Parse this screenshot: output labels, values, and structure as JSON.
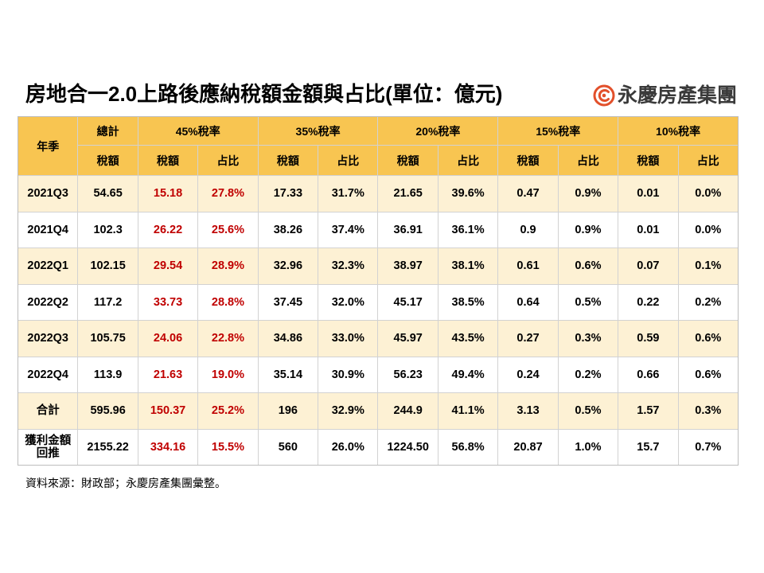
{
  "logo": {
    "text": "永慶房產集團",
    "icon": "brand-logo-icon",
    "color": "#E2502B"
  },
  "colors": {
    "header_bg": "#F8C551",
    "row_alt_bg": "#FDF1D4",
    "grid_line": "#D2D2D2"
  },
  "chart_data": {
    "type": "table",
    "title": "房地合一2.0上路後應納稅額金額與占比(單位：億元)",
    "source": "資料來源：財政部；永慶房產集團彙整。",
    "row_header": "年季",
    "groups": [
      {
        "label": "總計",
        "columns": [
          "稅額"
        ]
      },
      {
        "label": "45%稅率",
        "columns": [
          "稅額",
          "占比"
        ],
        "value_color": "#C00000"
      },
      {
        "label": "35%稅率",
        "columns": [
          "稅額",
          "占比"
        ]
      },
      {
        "label": "20%稅率",
        "columns": [
          "稅額",
          "占比"
        ]
      },
      {
        "label": "15%稅率",
        "columns": [
          "稅額",
          "占比"
        ]
      },
      {
        "label": "10%稅率",
        "columns": [
          "稅額",
          "占比"
        ]
      }
    ],
    "rows": [
      {
        "label": "2021Q3",
        "values": [
          "54.65",
          "15.18",
          "27.8%",
          "17.33",
          "31.7%",
          "21.65",
          "39.6%",
          "0.47",
          "0.9%",
          "0.01",
          "0.0%"
        ]
      },
      {
        "label": "2021Q4",
        "values": [
          "102.3",
          "26.22",
          "25.6%",
          "38.26",
          "37.4%",
          "36.91",
          "36.1%",
          "0.9",
          "0.9%",
          "0.01",
          "0.0%"
        ]
      },
      {
        "label": "2022Q1",
        "values": [
          "102.15",
          "29.54",
          "28.9%",
          "32.96",
          "32.3%",
          "38.97",
          "38.1%",
          "0.61",
          "0.6%",
          "0.07",
          "0.1%"
        ]
      },
      {
        "label": "2022Q2",
        "values": [
          "117.2",
          "33.73",
          "28.8%",
          "37.45",
          "32.0%",
          "45.17",
          "38.5%",
          "0.64",
          "0.5%",
          "0.22",
          "0.2%"
        ]
      },
      {
        "label": "2022Q3",
        "values": [
          "105.75",
          "24.06",
          "22.8%",
          "34.86",
          "33.0%",
          "45.97",
          "43.5%",
          "0.27",
          "0.3%",
          "0.59",
          "0.6%"
        ]
      },
      {
        "label": "2022Q4",
        "values": [
          "113.9",
          "21.63",
          "19.0%",
          "35.14",
          "30.9%",
          "56.23",
          "49.4%",
          "0.24",
          "0.2%",
          "0.66",
          "0.6%"
        ]
      },
      {
        "label": "合計",
        "values": [
          "595.96",
          "150.37",
          "25.2%",
          "196",
          "32.9%",
          "244.9",
          "41.1%",
          "3.13",
          "0.5%",
          "1.57",
          "0.3%"
        ]
      },
      {
        "label": "獲利金額\n回推",
        "values": [
          "2155.22",
          "334.16",
          "15.5%",
          "560",
          "26.0%",
          "1224.50",
          "56.8%",
          "20.87",
          "1.0%",
          "15.7",
          "0.7%"
        ]
      }
    ]
  }
}
